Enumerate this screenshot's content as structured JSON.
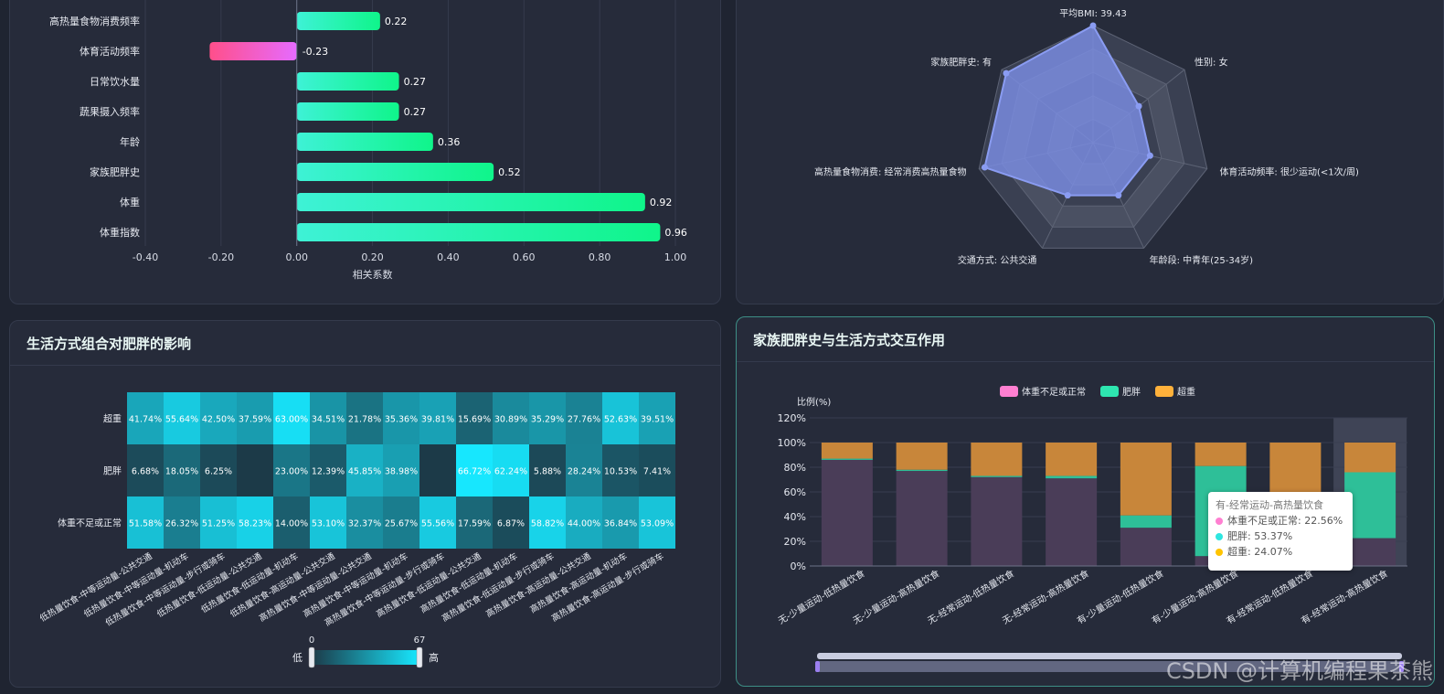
{
  "panels": {
    "lifestyle_title": "生活方式组合对肥胖的影响",
    "family_title": "家族肥胖史与生活方式交互作用"
  },
  "watermark": "CSDN @计算机编程果茶熊",
  "colors": {
    "bar_positive": "#1ef49a",
    "bar_negative": "#ff4f9a",
    "radar_fill": "#7b8ee3",
    "heat_low": "#1c3a48",
    "heat_high": "#17e8ff",
    "normal": "#ff7fd1",
    "obese": "#2ee6b0",
    "overweight": "#ffb13b"
  },
  "chart_data": [
    {
      "type": "bar",
      "orientation": "horizontal",
      "categories": [
        "高热量食物消费频率",
        "体育活动频率",
        "日常饮水量",
        "蔬果摄入频率",
        "年龄",
        "家族肥胖史",
        "体重",
        "体重指数"
      ],
      "values": [
        0.22,
        -0.23,
        0.27,
        0.27,
        0.36,
        0.52,
        0.92,
        0.96
      ],
      "value_labels": [
        "0.22",
        "-0.23",
        "0.27",
        "0.27",
        "0.36",
        "0.52",
        "0.92",
        "0.96"
      ],
      "xlabel": "相关系数",
      "xlim": [
        -0.4,
        1.0
      ],
      "xticks": [
        "-0.40",
        "-0.20",
        "0.00",
        "0.20",
        "0.40",
        "0.60",
        "0.80",
        "1.00"
      ],
      "grid": true
    },
    {
      "type": "radar",
      "indicators": [
        "平均BMI: 39.43",
        "性别: 女",
        "体育活动频率: 很少运动(<1次/周)",
        "年龄段: 中青年(25-34岁)",
        "交通方式: 公共交通",
        "高热量食物消费: 经常消费高热量食物",
        "家族肥胖史: 有"
      ],
      "values": [
        1.0,
        0.5,
        0.5,
        0.5,
        0.5,
        0.95,
        0.95
      ]
    },
    {
      "type": "heatmap",
      "x_categories": [
        "低热量饮食-中等运动量-公共交通",
        "低热量饮食-中等运动量-机动车",
        "低热量饮食-中等运动量-步行或骑车",
        "低热量饮食-低运动量-公共交通",
        "低热量饮食-低运动量-机动车",
        "低热量饮食-高运动量-公共交通",
        "高热量饮食-中等运动量-公共交通",
        "高热量饮食-中等运动量-机动车",
        "高热量饮食-中等运动量-步行或骑车",
        "高热量饮食-低运动量-公共交通",
        "高热量饮食-低运动量-机动车",
        "高热量饮食-低运动量-步行或骑车",
        "高热量饮食-高运动量-公共交通",
        "高热量饮食-高运动量-机动车",
        "高热量饮食-高运动量-步行或骑车"
      ],
      "y_categories": [
        "超重",
        "肥胖",
        "体重不足或正常"
      ],
      "values": [
        [
          41.74,
          55.64,
          42.5,
          37.59,
          63.0,
          34.51,
          21.78,
          35.36,
          39.81,
          15.69,
          30.89,
          35.29,
          27.76,
          52.63,
          39.51
        ],
        [
          6.68,
          18.05,
          6.25,
          null,
          23.0,
          12.39,
          45.85,
          38.98,
          null,
          66.72,
          62.24,
          5.88,
          28.24,
          10.53,
          7.41
        ],
        [
          51.58,
          26.32,
          51.25,
          58.23,
          14.0,
          53.1,
          32.37,
          25.67,
          55.56,
          17.59,
          6.87,
          58.82,
          44.0,
          36.84,
          53.09
        ]
      ],
      "labels": [
        [
          "41.74%",
          "55.64%",
          "42.50%",
          "37.59%",
          "63.00%",
          "34.51%",
          "21.78%",
          "35.36%",
          "39.81%",
          "15.69%",
          "30.89%",
          "35.29%",
          "27.76%",
          "52.63%",
          "39.51%"
        ],
        [
          "6.68%",
          "18.05%",
          "6.25%",
          "",
          "23.00%",
          "12.39%",
          "45.85%",
          "38.98%",
          "",
          "66.72%",
          "62.24%",
          "5.88%",
          "28.24%",
          "10.53%",
          "7.41%"
        ],
        [
          "51.58%",
          "26.32%",
          "51.25%",
          "58.23%",
          "14.00%",
          "53.10%",
          "32.37%",
          "25.67%",
          "55.56%",
          "17.59%",
          "6.87%",
          "58.82%",
          "44.00%",
          "36.84%",
          "53.09%"
        ]
      ],
      "visual_map": {
        "min": 0,
        "max": 67,
        "min_label": "0",
        "max_label": "67",
        "low_text": "低",
        "high_text": "高"
      }
    },
    {
      "type": "bar",
      "stacked": true,
      "categories": [
        "无-少量运动-低热量饮食",
        "无-少量运动-高热量饮食",
        "无-经常运动-低热量饮食",
        "无-经常运动-高热量饮食",
        "有-少量运动-低热量饮食",
        "有-少量运动-高热量饮食",
        "有-经常运动-低热量饮食",
        "有-经常运动-高热量饮食"
      ],
      "series": [
        {
          "name": "体重不足或正常",
          "values": [
            86,
            77,
            72,
            71,
            31,
            8,
            0,
            22.56
          ]
        },
        {
          "name": "肥胖",
          "values": [
            1,
            1,
            1,
            2,
            10,
            73,
            0,
            53.37
          ]
        },
        {
          "name": "超重",
          "values": [
            13,
            22,
            27,
            27,
            59,
            19,
            100,
            24.07
          ]
        }
      ],
      "ylabel": "比例(%)",
      "ylim": [
        0,
        120
      ],
      "yticks": [
        "0%",
        "20%",
        "40%",
        "60%",
        "80%",
        "100%",
        "120%"
      ],
      "legend_position": "top-center",
      "highlighted_index": 7,
      "tooltip": {
        "title": "有-经常运动-高热量饮食",
        "rows": [
          "体重不足或正常: 22.56%",
          "肥胖: 53.37%",
          "超重: 24.07%"
        ]
      }
    }
  ]
}
